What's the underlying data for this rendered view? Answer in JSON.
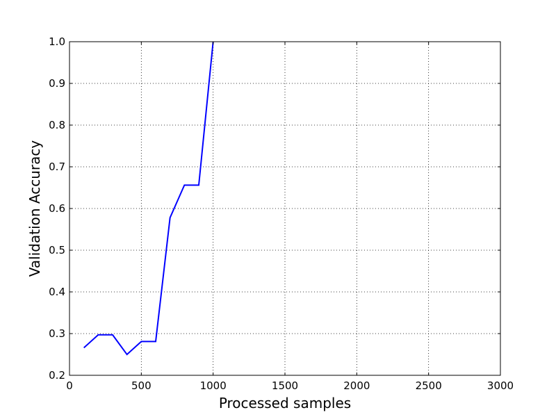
{
  "chart_data": {
    "type": "line",
    "title": "",
    "xlabel": "Processed samples",
    "ylabel": "Validation Accuracy",
    "xlim": [
      0,
      3000
    ],
    "ylim": [
      0.2,
      1.0
    ],
    "x_ticks": [
      0,
      500,
      1000,
      1500,
      2000,
      2500,
      3000
    ],
    "x_tick_labels": [
      "0",
      "500",
      "1000",
      "1500",
      "2000",
      "2500",
      "3000"
    ],
    "y_ticks": [
      0.2,
      0.3,
      0.4,
      0.5,
      0.6,
      0.7,
      0.8,
      0.9,
      1.0
    ],
    "y_tick_labels": [
      "0.2",
      "0.3",
      "0.4",
      "0.5",
      "0.6",
      "0.7",
      "0.8",
      "0.9",
      "1.0"
    ],
    "grid": true,
    "grid_style": "dotted",
    "legend": "none",
    "series": [
      {
        "color": "#0000ff",
        "x": [
          100,
          200,
          300,
          400,
          500,
          600,
          700,
          800,
          900,
          1000
        ],
        "y": [
          0.266,
          0.297,
          0.297,
          0.25,
          0.281,
          0.281,
          0.578,
          0.656,
          0.656,
          1.0
        ]
      }
    ]
  }
}
